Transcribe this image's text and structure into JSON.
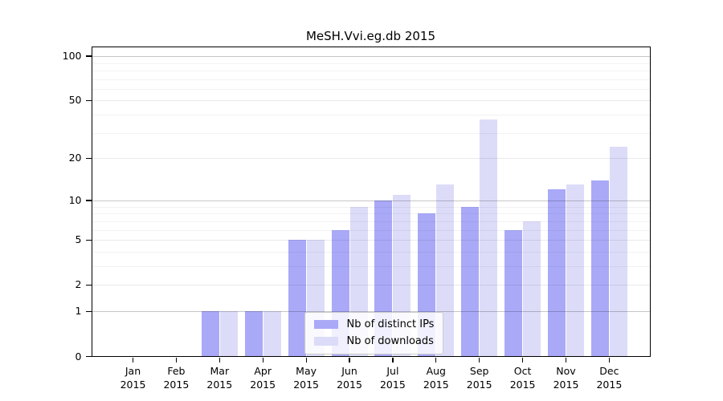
{
  "chart_data": {
    "type": "bar",
    "title": "MeSH.Vvi.eg.db 2015",
    "xlabel": "",
    "ylabel": "",
    "x_year": "2015",
    "categories": [
      "Jan",
      "Feb",
      "Mar",
      "Apr",
      "May",
      "Jun",
      "Jul",
      "Aug",
      "Sep",
      "Oct",
      "Nov",
      "Dec"
    ],
    "series": [
      {
        "name": "Nb of distinct IPs",
        "color": "#a9a9f8",
        "values": [
          0,
          0,
          1,
          1,
          5,
          6,
          10,
          8,
          9,
          6,
          12,
          14
        ]
      },
      {
        "name": "Nb of downloads",
        "color": "#dcdcf9",
        "values": [
          0,
          0,
          1,
          1,
          5,
          9,
          11,
          13,
          37,
          7,
          13,
          24
        ]
      }
    ],
    "yscale": "log1p",
    "ylim": [
      0,
      115
    ],
    "yticks": [
      0,
      1,
      2,
      5,
      10,
      20,
      50,
      100
    ],
    "minor_gridlines": [
      3,
      4,
      6,
      7,
      8,
      9,
      30,
      40,
      60,
      70,
      80,
      90
    ],
    "grid": true,
    "legend_position": "inside-bottom-center"
  }
}
